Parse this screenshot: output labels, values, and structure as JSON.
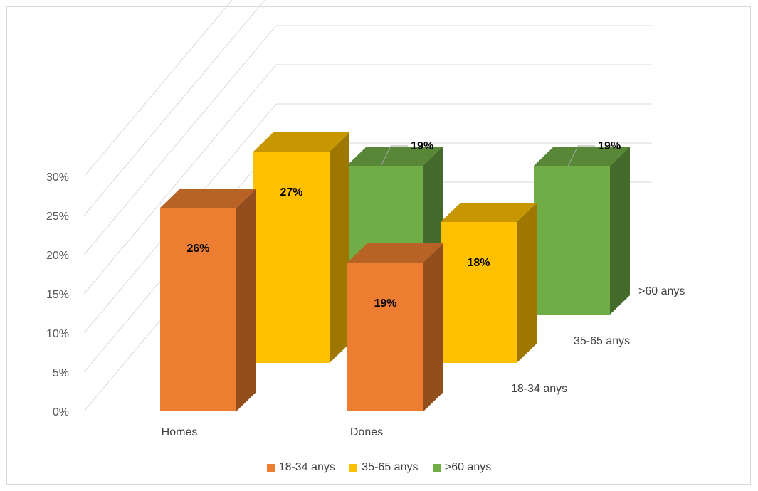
{
  "chart_data": {
    "type": "bar",
    "variant": "3d-column",
    "title": "",
    "xlabel": "",
    "ylabel": "",
    "categories": [
      "Homes",
      "Dones"
    ],
    "series": [
      {
        "name": "18-34 anys",
        "values": [
          26,
          19
        ],
        "labels": [
          "26%",
          "19%"
        ],
        "color": "#ED7D31"
      },
      {
        "name": "35-65 anys",
        "values": [
          27,
          18
        ],
        "labels": [
          "27%",
          "18%"
        ],
        "color": "#FFC000"
      },
      {
        "name": ">60 anys",
        "values": [
          19,
          19
        ],
        "labels": [
          "19%",
          "19%"
        ],
        "color": "#70AD47"
      }
    ],
    "ylim": [
      0,
      30
    ],
    "yticks": [
      "0%",
      "5%",
      "10%",
      "15%",
      "20%",
      "25%",
      "30%"
    ],
    "grid": true,
    "legend": "bottom"
  }
}
